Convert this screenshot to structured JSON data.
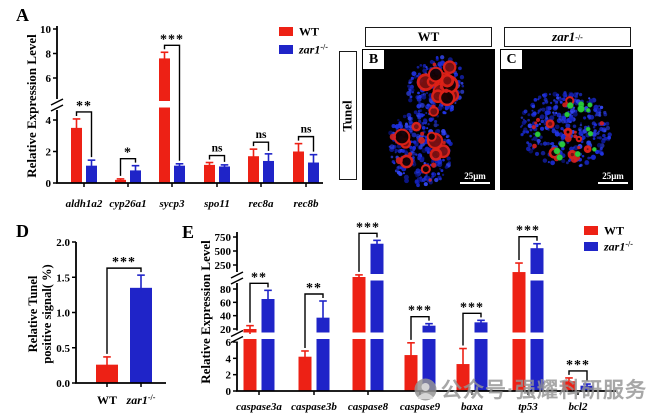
{
  "figure": {
    "panel_letters": {
      "a": "A",
      "b": "B",
      "c": "C",
      "d": "D",
      "e": "E"
    },
    "colors": {
      "wt": "#ED2115",
      "ko": "#1F24C8"
    },
    "micro": {
      "header_wt": "WT",
      "header_ko_base": "zar1",
      "header_ko_sup": "-/-",
      "row_label": "Tunel",
      "scale_bar": "25μm"
    },
    "watermark_text": "公众号·强耀科研服务"
  },
  "chart_data": [
    {
      "id": "A",
      "type": "bar",
      "title": "",
      "ylabel": "Relative Expression Level",
      "ylim": [
        0,
        10
      ],
      "axis_breaks_between": [
        [
          4,
          6
        ]
      ],
      "yticks": [
        {
          "v": 0,
          "label": "0"
        },
        {
          "v": 2,
          "label": "2"
        },
        {
          "v": 4,
          "label": "4"
        },
        {
          "v": 6,
          "label": "6"
        },
        {
          "v": 8,
          "label": "8"
        },
        {
          "v": 10,
          "label": "10"
        }
      ],
      "categories": [
        "aldh1a2",
        "cyp26a1",
        "sycp3",
        "spo11",
        "rec8a",
        "rec8b"
      ],
      "categories_italic": true,
      "series": [
        {
          "name": "WT",
          "name_sup": "",
          "italic": false,
          "color_key": "wt",
          "values": [
            3.5,
            0.2,
            7.6,
            1.15,
            1.7,
            2.0
          ],
          "errors": [
            0.55,
            0.06,
            0.5,
            0.15,
            0.45,
            0.5
          ]
        },
        {
          "name": "zar1",
          "name_sup": "-/-",
          "italic": true,
          "color_key": "ko",
          "values": [
            1.1,
            0.8,
            1.1,
            1.05,
            1.4,
            1.3
          ],
          "errors": [
            0.35,
            0.3,
            0.12,
            0.1,
            0.45,
            0.5
          ]
        }
      ],
      "significance": [
        "**",
        "*",
        "***",
        "ns",
        "ns",
        "ns"
      ],
      "legend_position": "top-right"
    },
    {
      "id": "D",
      "type": "bar",
      "title": "",
      "ylabel_lines": [
        "Relative Tunel",
        "positive signal( %)"
      ],
      "ylim": [
        0,
        2
      ],
      "yticks": [
        {
          "v": 0,
          "label": "0.0"
        },
        {
          "v": 0.5,
          "label": "0.5"
        },
        {
          "v": 1,
          "label": "1.0"
        },
        {
          "v": 1.5,
          "label": "1.5"
        },
        {
          "v": 2,
          "label": "2.0"
        }
      ],
      "categories": [
        {
          "label": "WT",
          "sup": "",
          "italic": false
        },
        {
          "label": "zar1",
          "sup": "-/-",
          "italic": true
        }
      ],
      "values": [
        0.26,
        1.35
      ],
      "errors": [
        0.11,
        0.18
      ],
      "bar_color_keys": [
        "wt",
        "ko"
      ],
      "significance": "***"
    },
    {
      "id": "E",
      "type": "bar",
      "title": "",
      "ylabel": "Relative Expression Level",
      "ylim": [
        0,
        750
      ],
      "axis_breaks_between": [
        [
          6,
          20
        ],
        [
          80,
          250
        ]
      ],
      "yticks": [
        {
          "v": 0,
          "label": "0"
        },
        {
          "v": 2,
          "label": "2"
        },
        {
          "v": 4,
          "label": "4"
        },
        {
          "v": 6,
          "label": "6"
        },
        {
          "v": 20,
          "label": "20"
        },
        {
          "v": 40,
          "label": "40"
        },
        {
          "v": 60,
          "label": "60"
        },
        {
          "v": 80,
          "label": "80"
        },
        {
          "v": 250,
          "label": "250"
        },
        {
          "v": 500,
          "label": "500"
        },
        {
          "v": 750,
          "label": "750"
        }
      ],
      "categories": [
        "caspase3a",
        "caspase3b",
        "caspase8",
        "caspase9",
        "baxa",
        "tp53",
        "bcl2"
      ],
      "categories_italic": true,
      "series": [
        {
          "name": "WT",
          "name_sup": "",
          "italic": false,
          "color_key": "wt",
          "values": [
            20,
            4.2,
            165,
            4.4,
            3.3,
            200,
            1.2
          ],
          "errors": [
            5,
            0.7,
            15,
            1.5,
            1.9,
            85,
            0.4
          ]
        },
        {
          "name": "zar1",
          "name_sup": "-/-",
          "italic": true,
          "color_key": "ko",
          "values": [
            65,
            37,
            630,
            25,
            30,
            550,
            0.65
          ],
          "errors": [
            13,
            25,
            60,
            3,
            3,
            80,
            0.2
          ]
        }
      ],
      "significance": [
        "**",
        "**",
        "***",
        "***",
        "***",
        "***",
        "***"
      ],
      "legend_position": "top-right"
    }
  ]
}
